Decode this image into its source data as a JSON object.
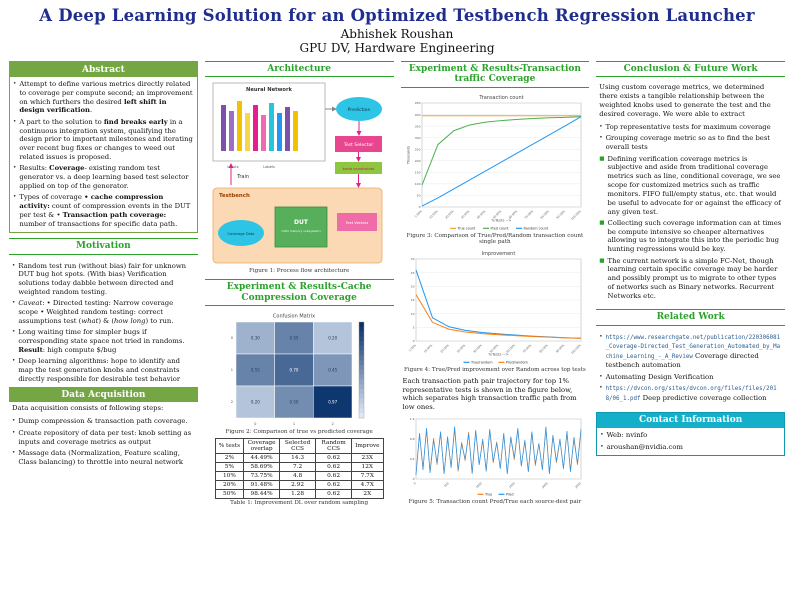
{
  "poster": {
    "title": "A Deep Learning Solution for an Optimized Testbench Regression Launcher",
    "author": "Abhishek Roushan",
    "affiliation": "GPU DV, Hardware Engineering"
  },
  "colors": {
    "title_navy": "#1f2d8f",
    "section_green": "#2ba32b",
    "band_green": "#74a743",
    "contact_cyan": "#14b0ca"
  },
  "abstract": {
    "heading": "Abstract",
    "bullets": [
      [
        {
          "t": "Attempt to define various metrics directly related to coverage per compute second; an improvement on which furthers the desired "
        },
        {
          "t": "left shift in design verification",
          "b": true
        },
        {
          "t": "."
        }
      ],
      [
        {
          "t": "A part to the solution to "
        },
        {
          "t": "find breaks early",
          "b": true
        },
        {
          "t": " in a continuous integration system, qualifying the design prior to important milestones and iterating over recent bug fixes or changes to weed out related issues is proposed."
        }
      ],
      [
        {
          "t": "Results: "
        },
        {
          "t": "Coverage",
          "b": true
        },
        {
          "t": "- existing random test generator vs. a deep learning based test selector applied on top of the generator."
        }
      ],
      [
        {
          "t": "Types of coverage "
        },
        {
          "t": "• cache compression activity:",
          "b": true
        },
        {
          "t": " count of compression events in the DUT per test & • "
        },
        {
          "t": "Transaction path coverage:",
          "b": true
        },
        {
          "t": " number of transactions for specific data path."
        }
      ]
    ]
  },
  "motivation": {
    "heading": "Motivation",
    "bullets": [
      [
        {
          "t": "Random test run (without bias) fair for unknown DUT bug hot spots. (With bias) Verification solutions today dabble between directed and weighted random testing."
        }
      ],
      [
        {
          "t": "Caveat",
          "i": true
        },
        {
          "t": ": • Directed testing: Narrow coverage scope • Weighted random testing: correct assumptions test ("
        },
        {
          "t": "what",
          "i": true
        },
        {
          "t": ") & ("
        },
        {
          "t": "how long",
          "i": true
        },
        {
          "t": ") to run."
        }
      ],
      [
        {
          "t": "Long waiting time for simpler bugs if corresponding state space not tried in randoms. "
        },
        {
          "t": "Result",
          "b": true
        },
        {
          "t": ": high compute $/bug"
        }
      ],
      [
        {
          "t": "Deep learning algorithms: hope to identify and map the test generation knobs and constraints directly responsible for desirable test behavior"
        }
      ]
    ]
  },
  "data_acquisition": {
    "heading": "Data Acquisition",
    "intro": "Data acquisition consists of following steps:",
    "bullets": [
      "Dump compression & transaction path coverage.",
      "Create repository of data per test: knob setting as inputs and coverage metrics as output",
      "Massage data (Normalization, Feature scaling, Class balancing) to throttle into neural network"
    ]
  },
  "architecture": {
    "heading": "Architecture",
    "caption": "Figure 1: Process flow architecture",
    "labels": {
      "neural_network": "Neural Network",
      "inputs": "Inputs",
      "labels": "Labels",
      "prediction": "Prediction",
      "test_selector": "Test Selector",
      "knob_constraints": "knob constraints",
      "train": "Train",
      "testbench": "Testbench",
      "coverage_data": "Coverage Data",
      "dut": "DUT",
      "dut_sub": "(GPU memory subsystem)",
      "test_vectors": "Test Vectors"
    }
  },
  "cache_results": {
    "heading": "Experiment & Results-Cache Compression Coverage",
    "figure2_caption": "Figure 2: Comparison of true vs predicted coverage",
    "table": {
      "caption": "Table 1: Improvement DL over random sampling",
      "headers": [
        "% tests",
        "Coverage overlap",
        "Selected CCS",
        "Random CCS",
        "Improve"
      ],
      "rows": [
        [
          "2%",
          "44.49%",
          "14.3",
          "0.62",
          "23X"
        ],
        [
          "5%",
          "58.69%",
          "7.2",
          "0.62",
          "12X"
        ],
        [
          "10%",
          "73.75%",
          "4.8",
          "0.62",
          "7.7X"
        ],
        [
          "20%",
          "91.48%",
          "2.92",
          "0.62",
          "4.7X"
        ],
        [
          "50%",
          "98.44%",
          "1.28",
          "0.62",
          "2X"
        ]
      ]
    }
  },
  "transaction_results": {
    "heading": "Experiment & Results-Transaction traffic Coverage",
    "figure3_caption": "Figure 3: Comparison of True/Pred/Random transaction count single path",
    "figure4_caption": "Figure 4: True/Pred improvement over Random across top tests",
    "paragraph": "Each transaction path pair trajectory for top 1% representative tests is shown in the figure below, which separates high transaction traffic path from low ones.",
    "figure5_caption": "Figure 5: Transaction count Pred/True each source-dest pair"
  },
  "conclusion": {
    "heading": "Conclusion & Future Work",
    "intro": "Using custom coverage metrics, we determined there exists a tangible relationship between the weighted knobs used to generate the test and the desired coverage. We were able to extract",
    "bullets": [
      {
        "segs": [
          {
            "t": "Top representative tests for maximum coverage"
          }
        ]
      },
      {
        "segs": [
          {
            "t": "Grouping coverage metric so as to find the best overall tests"
          }
        ]
      },
      {
        "g": true,
        "segs": [
          {
            "t": "Defining verification coverage metrics is subjective and aside from traditional coverage metrics such as line, conditional coverage, we see scope for customized metrics such as traffic monitors. FIFO full/empty status, etc. that would be useful to advocate for or against the efficacy of any given test."
          }
        ]
      },
      {
        "g": true,
        "segs": [
          {
            "t": "Collecting such coverage information can at times be compute intensive so cheaper alternatives allowing us to integrate this into the periodic bug hunting regressions would be key."
          }
        ]
      },
      {
        "g": true,
        "segs": [
          {
            "t": "The current network is a simple FC-Net, though learning certain specific coverage may be harder and possibly prompt us to migrate to other types of networks such as Binary networks. Recurrent Networks etc."
          }
        ]
      }
    ]
  },
  "related_work": {
    "heading": "Related Work",
    "items": [
      [
        {
          "t": "https://www.researchgate.net/publication/220306081_Coverage-Directed_Test_Generation_Automated_by_Machine_Learning_-_A_Review",
          "m": true,
          "link": true
        },
        {
          "t": " Coverage directed testbench automation"
        }
      ],
      [
        {
          "t": "Automating Design Verification"
        }
      ],
      [
        {
          "t": "https://dvcon.org/sites/dvcon.org/files/files/2018/06_1.pdf",
          "m": true,
          "link": true
        },
        {
          "t": " Deep predictive coverage collection"
        }
      ]
    ]
  },
  "contact": {
    "heading": "Contact Information",
    "items": [
      "Web: nvinfo",
      "aroushan@nvidia.com"
    ]
  },
  "chart_data": [
    {
      "id": "fig2",
      "type": "heatmap",
      "title": "Confusion Matrix",
      "x_labels": [
        "0",
        "1",
        "2"
      ],
      "y_labels": [
        "0",
        "1",
        "2"
      ],
      "matrix": [
        [
          0.3,
          0.55,
          0.2
        ],
        [
          0.55,
          0.7,
          0.45
        ],
        [
          0.2,
          0.5,
          0.97
        ]
      ],
      "colormap": [
        "#dee9f7",
        "#08306b"
      ]
    },
    {
      "id": "fig3",
      "type": "line",
      "title": "Transaction count",
      "ylabel": "Thousands",
      "xlabel": "%Tests -->",
      "x_labels": [
        "1.00%",
        "10.00%",
        "20.00%",
        "30.00%",
        "40.00%",
        "50.00%",
        "60.00%",
        "70.00%",
        "80.00%",
        "90.00%",
        "100.00%"
      ],
      "ylim": [
        0,
        450
      ],
      "yticks": [
        0,
        50,
        100,
        150,
        200,
        250,
        300,
        350,
        400,
        450
      ],
      "legend_position": "bottom",
      "series": [
        {
          "name": "True count",
          "color": "#f0a330",
          "values": [
            395,
            395,
            395,
            395,
            395,
            395,
            395,
            395,
            395,
            395,
            395
          ]
        },
        {
          "name": "Pred count",
          "color": "#4caf50",
          "values": [
            95,
            270,
            330,
            355,
            367,
            374,
            379,
            383,
            386,
            388,
            391
          ]
        },
        {
          "name": "Random count",
          "color": "#2196f3",
          "values": [
            4,
            39,
            78,
            117,
            156,
            195,
            234,
            273,
            312,
            351,
            391
          ]
        }
      ]
    },
    {
      "id": "fig4",
      "type": "line",
      "title": "Improvement",
      "xlabel": "%Tests -->",
      "x_labels": [
        "1.00%",
        "10.00%",
        "20.00%",
        "30.00%",
        "40.00%",
        "50.00%",
        "60.00%",
        "70.00%",
        "80.00%",
        "90.00%",
        "100.00%"
      ],
      "ylim": [
        0,
        30
      ],
      "yticks": [
        0,
        5,
        10,
        15,
        20,
        25,
        30
      ],
      "legend_position": "bottom",
      "series": [
        {
          "name": "True/random",
          "color": "#2196f3",
          "values": [
            26,
            8.5,
            5.2,
            3.9,
            3.1,
            2.6,
            2.2,
            1.8,
            1.5,
            1.2,
            1.0
          ]
        },
        {
          "name": "Pred/random",
          "color": "#ff7f0e",
          "values": [
            17,
            6.8,
            4.3,
            3.3,
            2.7,
            2.3,
            1.95,
            1.65,
            1.4,
            1.15,
            1.0
          ]
        }
      ]
    },
    {
      "id": "fig5",
      "type": "line",
      "title": "",
      "x_labels": [
        "0",
        "500",
        "1000",
        "1500",
        "2000",
        "2500"
      ],
      "ylim": [
        0,
        1.2
      ],
      "yticks": [
        0,
        0.4,
        0.8,
        1.2
      ],
      "legend_position": "bottom",
      "series": [
        {
          "name": "True",
          "color": "#ff7f0e",
          "values": [
            0.1,
            0.88,
            0.22,
            0.98,
            0.15,
            0.82,
            0.28,
            0.92,
            0.12,
            0.8,
            0.25,
            1.0,
            0.15,
            0.74,
            0.36,
            0.94,
            0.1,
            0.95,
            0.3,
            0.76,
            0.18,
            0.96,
            0.32,
            0.75,
            0.22,
            0.88,
            0.12,
            0.82,
            0.38,
            0.98,
            0.28,
            0.74,
            0.16,
            0.92,
            0.26,
            0.72,
            0.2,
            1.0,
            0.12,
            0.85,
            0.32,
            0.78,
            0.22,
            0.92,
            0.16,
            0.8,
            0.28,
            0.96
          ]
        },
        {
          "name": "Pred",
          "color": "#2196f3",
          "values": [
            0.08,
            0.92,
            0.18,
            1.02,
            0.12,
            0.78,
            0.32,
            0.95,
            0.1,
            0.85,
            0.22,
            1.05,
            0.18,
            0.7,
            0.4,
            0.9,
            0.12,
            0.98,
            0.28,
            0.8,
            0.15,
            1.0,
            0.35,
            0.72,
            0.2,
            0.92,
            0.1,
            0.85,
            0.42,
            1.02,
            0.25,
            0.78,
            0.14,
            0.95,
            0.3,
            0.7,
            0.18,
            1.05,
            0.1,
            0.88,
            0.35,
            0.8,
            0.2,
            0.96,
            0.14,
            0.84,
            0.3,
            1.0
          ]
        }
      ]
    }
  ]
}
